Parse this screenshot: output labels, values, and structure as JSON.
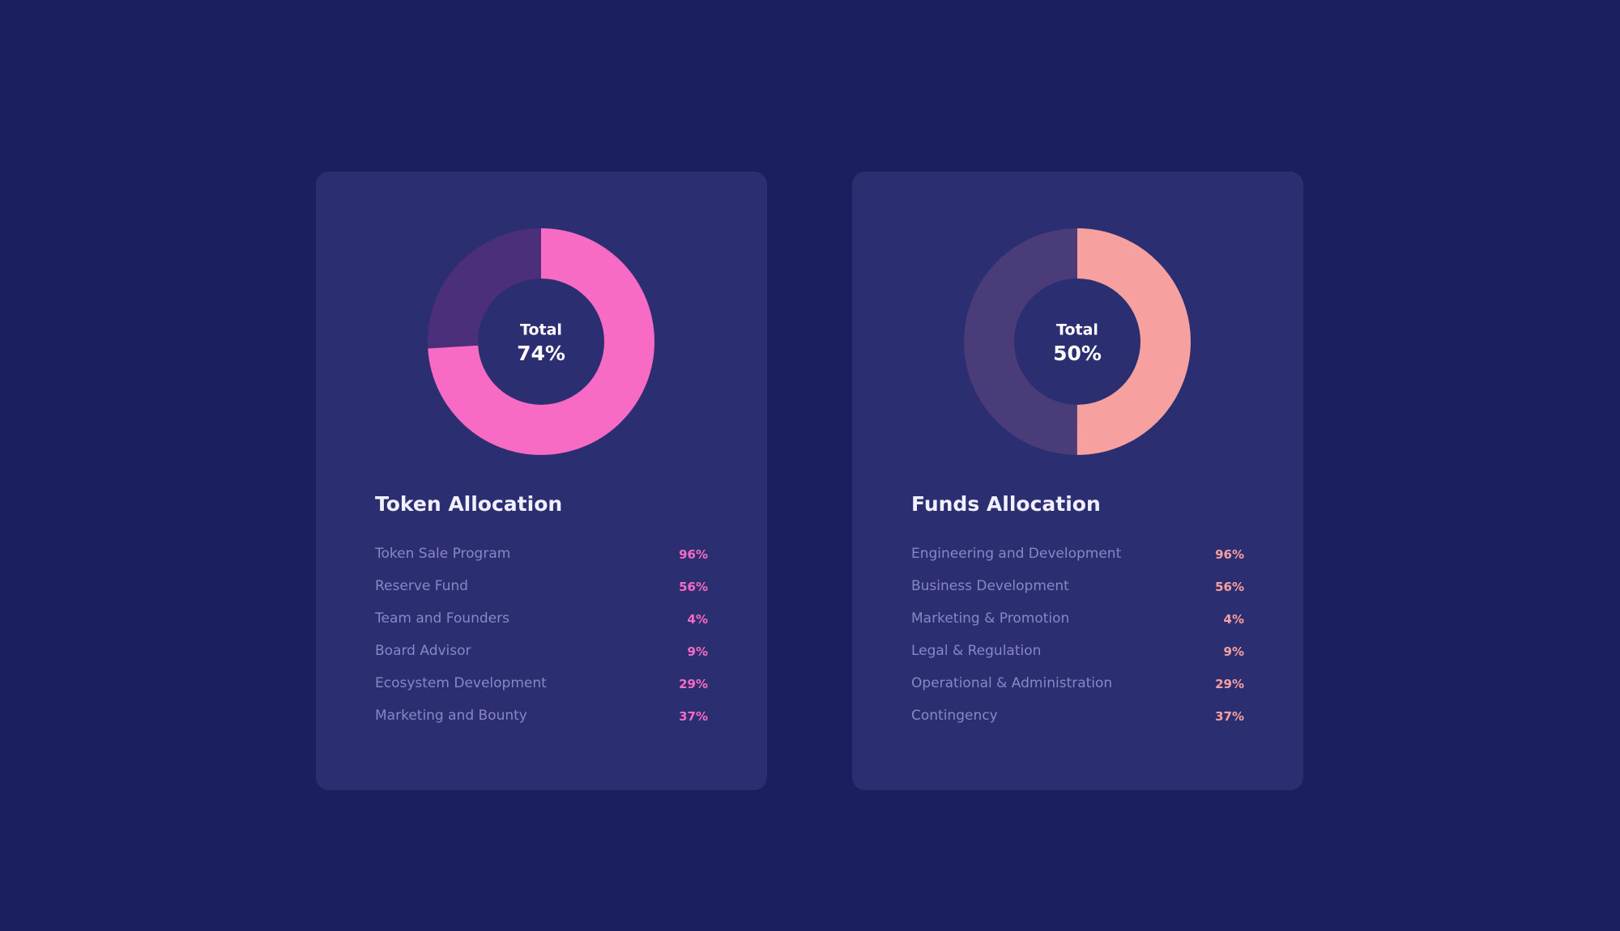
{
  "cards": [
    {
      "title": "Token Allocation",
      "chart": {
        "type": "donut",
        "center_label": "Total",
        "value": 74,
        "value_label": "74%",
        "color": "#f76bc4",
        "track_color": "#4c2f7b"
      },
      "items": [
        {
          "label": "Token Sale Program",
          "value": "96%"
        },
        {
          "label": "Reserve Fund",
          "value": "56%"
        },
        {
          "label": "Team and Founders",
          "value": "4%"
        },
        {
          "label": "Board Advisor",
          "value": "9%"
        },
        {
          "label": "Ecosystem Development",
          "value": "29%"
        },
        {
          "label": "Marketing and Bounty",
          "value": "37%"
        }
      ],
      "accent": "#f76bc4"
    },
    {
      "title": "Funds Allocation",
      "chart": {
        "type": "donut",
        "center_label": "Total",
        "value": 50,
        "value_label": "50%",
        "color": "#f6a19f",
        "track_color": "#4a3b79"
      },
      "items": [
        {
          "label": "Engineering and Development",
          "value": "96%"
        },
        {
          "label": "Business Development",
          "value": "56%"
        },
        {
          "label": "Marketing & Promotion",
          "value": "4%"
        },
        {
          "label": "Legal & Regulation",
          "value": "9%"
        },
        {
          "label": "Operational & Administration",
          "value": "29%"
        },
        {
          "label": "Contingency",
          "value": "37%"
        }
      ],
      "accent": "#f6a19f"
    }
  ]
}
